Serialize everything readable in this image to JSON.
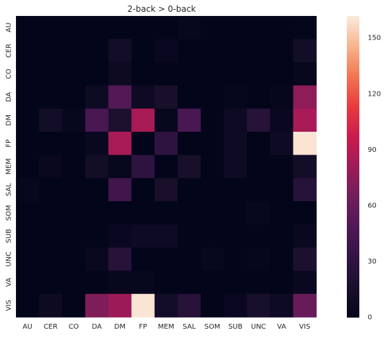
{
  "chart_data": {
    "type": "heatmap",
    "title": "2-back > 0-back",
    "xlabel": "",
    "ylabel": "",
    "x_categories": [
      "AU",
      "CER",
      "CO",
      "DA",
      "DM",
      "FP",
      "MEM",
      "SAL",
      "SOM",
      "SUB",
      "UNC",
      "VA",
      "VIS"
    ],
    "y_categories": [
      "AU",
      "CER",
      "CO",
      "DA",
      "DM",
      "FP",
      "MEM",
      "SAL",
      "SOM",
      "SUB",
      "UNC",
      "VA",
      "VIS"
    ],
    "values": [
      [
        0,
        0,
        0,
        0,
        0,
        0,
        0,
        3,
        0,
        0,
        0,
        0,
        1
      ],
      [
        0,
        0,
        0,
        0,
        12,
        0,
        5,
        0,
        0,
        0,
        0,
        0,
        12
      ],
      [
        0,
        0,
        0,
        0,
        7,
        0,
        0,
        0,
        0,
        0,
        0,
        0,
        3
      ],
      [
        0,
        0,
        0,
        8,
        50,
        8,
        15,
        0,
        0,
        2,
        0,
        2,
        75
      ],
      [
        0,
        12,
        3,
        45,
        18,
        85,
        3,
        45,
        0,
        8,
        25,
        5,
        85
      ],
      [
        0,
        0,
        0,
        5,
        85,
        0,
        30,
        0,
        0,
        8,
        0,
        8,
        160
      ],
      [
        0,
        5,
        0,
        12,
        3,
        30,
        0,
        15,
        0,
        8,
        0,
        0,
        12
      ],
      [
        3,
        0,
        0,
        0,
        40,
        0,
        15,
        0,
        0,
        0,
        0,
        0,
        25
      ],
      [
        0,
        0,
        0,
        0,
        0,
        0,
        0,
        0,
        0,
        0,
        3,
        0,
        0
      ],
      [
        0,
        0,
        0,
        0,
        5,
        8,
        8,
        0,
        0,
        0,
        0,
        0,
        5
      ],
      [
        0,
        0,
        0,
        5,
        25,
        0,
        0,
        0,
        3,
        0,
        2,
        0,
        18
      ],
      [
        0,
        0,
        0,
        0,
        3,
        3,
        0,
        0,
        0,
        0,
        0,
        0,
        5
      ],
      [
        0,
        8,
        0,
        70,
        80,
        160,
        12,
        25,
        0,
        5,
        15,
        8,
        60
      ]
    ],
    "vmin": 0,
    "vmax": 162,
    "colorbar": {
      "ticks": [
        0,
        30,
        60,
        90,
        120,
        150
      ]
    },
    "colormap": "rocket",
    "grid": false
  }
}
